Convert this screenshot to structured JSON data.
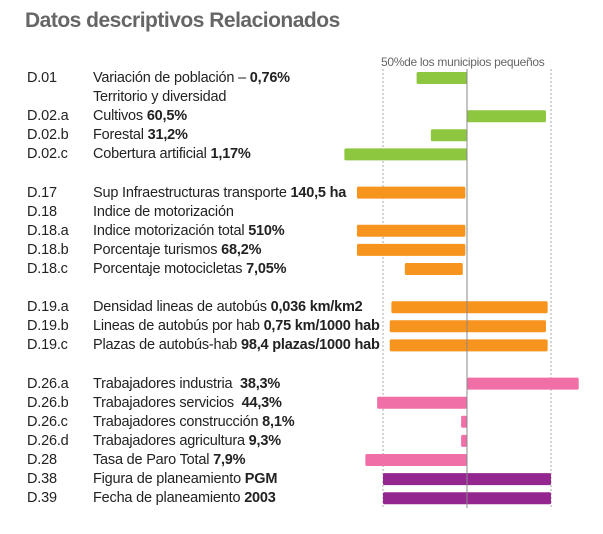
{
  "title": "Datos descriptivos Relacionados",
  "chart_data": {
    "type": "bar",
    "title": "Datos descriptivos Relacionados",
    "reference_label": "50%de los municipios pequeños",
    "note": "bars are deviations from the center reference; dashed lines mark ±1 (50% of small municipalities)",
    "xlim": [
      -1.6,
      1.6
    ],
    "colors": {
      "green": "#8dc63f",
      "orange": "#f7941d",
      "pink": "#f06fa6",
      "purple": "#93278f"
    },
    "rows": [
      {
        "code": "D.01",
        "text": "Variación de población – ",
        "bold": "0,76%",
        "from": -0.6,
        "to": 0,
        "color": "green"
      },
      {
        "code": "",
        "text": "Territorio y diversidad",
        "bold": "",
        "from": null,
        "to": null,
        "color": ""
      },
      {
        "code": "D.02.a",
        "text": "Cultivos ",
        "bold": "60,5%",
        "from": 0,
        "to": 0.94,
        "color": "green"
      },
      {
        "code": "D.02.b",
        "text": "Forestal ",
        "bold": "31,2%",
        "from": -0.43,
        "to": 0,
        "color": "green"
      },
      {
        "code": "D.02.c",
        "text": "Cobertura artificial ",
        "bold": "1,17%",
        "from": -1.46,
        "to": 0,
        "color": "green"
      },
      {
        "gap": true
      },
      {
        "code": "D.17",
        "text": "Sup Infraestructuras transporte ",
        "bold": "140,5 ha",
        "from": -1.31,
        "to": -0.02,
        "color": "orange"
      },
      {
        "code": "D.18",
        "text": "Indice de motorización",
        "bold": "",
        "from": null,
        "to": null,
        "color": ""
      },
      {
        "code": "D.18.a",
        "text": "Indice motorización total ",
        "bold": "510%",
        "from": -1.31,
        "to": -0.02,
        "color": "orange"
      },
      {
        "code": "D.18.b",
        "text": "Porcentaje turismos ",
        "bold": "68,2%",
        "from": -1.31,
        "to": -0.02,
        "color": "orange"
      },
      {
        "code": "D.18.c",
        "text": "Porcentaje motocicletas ",
        "bold": "7,05%",
        "from": -0.74,
        "to": -0.05,
        "color": "orange"
      },
      {
        "gap": true
      },
      {
        "code": "D.19.a",
        "text": "Densidad lineas de autobús ",
        "bold": "0,036 km/km2",
        "from": -0.9,
        "to": 0.96,
        "color": "orange"
      },
      {
        "code": "D.19.b",
        "text": "Lineas de autobús por hab ",
        "bold": "0,75 km/1000 hab",
        "from": -0.92,
        "to": 0.94,
        "color": "orange"
      },
      {
        "code": "D.19.c",
        "text": "Plazas de autobús-hab ",
        "bold": "98,4 plazas/1000 hab",
        "from": -0.92,
        "to": 0.96,
        "color": "orange"
      },
      {
        "gap": true
      },
      {
        "code": "D.26.a",
        "text": "Trabajadores industria  ",
        "bold": "38,3%",
        "from": 0,
        "to": 1.33,
        "color": "pink"
      },
      {
        "code": "D.26.b",
        "text": "Trabajadores servicios  ",
        "bold": "44,3%",
        "from": -1.07,
        "to": 0,
        "color": "pink"
      },
      {
        "code": "D.26.c",
        "text": "Trabajadores construcción ",
        "bold": "8,1%",
        "from": -0.07,
        "to": 0,
        "color": "pink"
      },
      {
        "code": "D.26.d",
        "text": "Trabajadores agricultura ",
        "bold": "9,3%",
        "from": -0.07,
        "to": 0,
        "color": "pink"
      },
      {
        "code": "D.28",
        "text": "Tasa de Paro Total ",
        "bold": "7,9%",
        "from": -1.21,
        "to": 0,
        "color": "pink"
      },
      {
        "code": "D.38",
        "text": "Figura de planeamiento ",
        "bold": "PGM",
        "from": -1,
        "to": 1,
        "color": "purple"
      },
      {
        "code": "D.39",
        "text": "Fecha de planeamiento ",
        "bold": "2003",
        "from": -1,
        "to": 1,
        "color": "purple"
      }
    ]
  }
}
